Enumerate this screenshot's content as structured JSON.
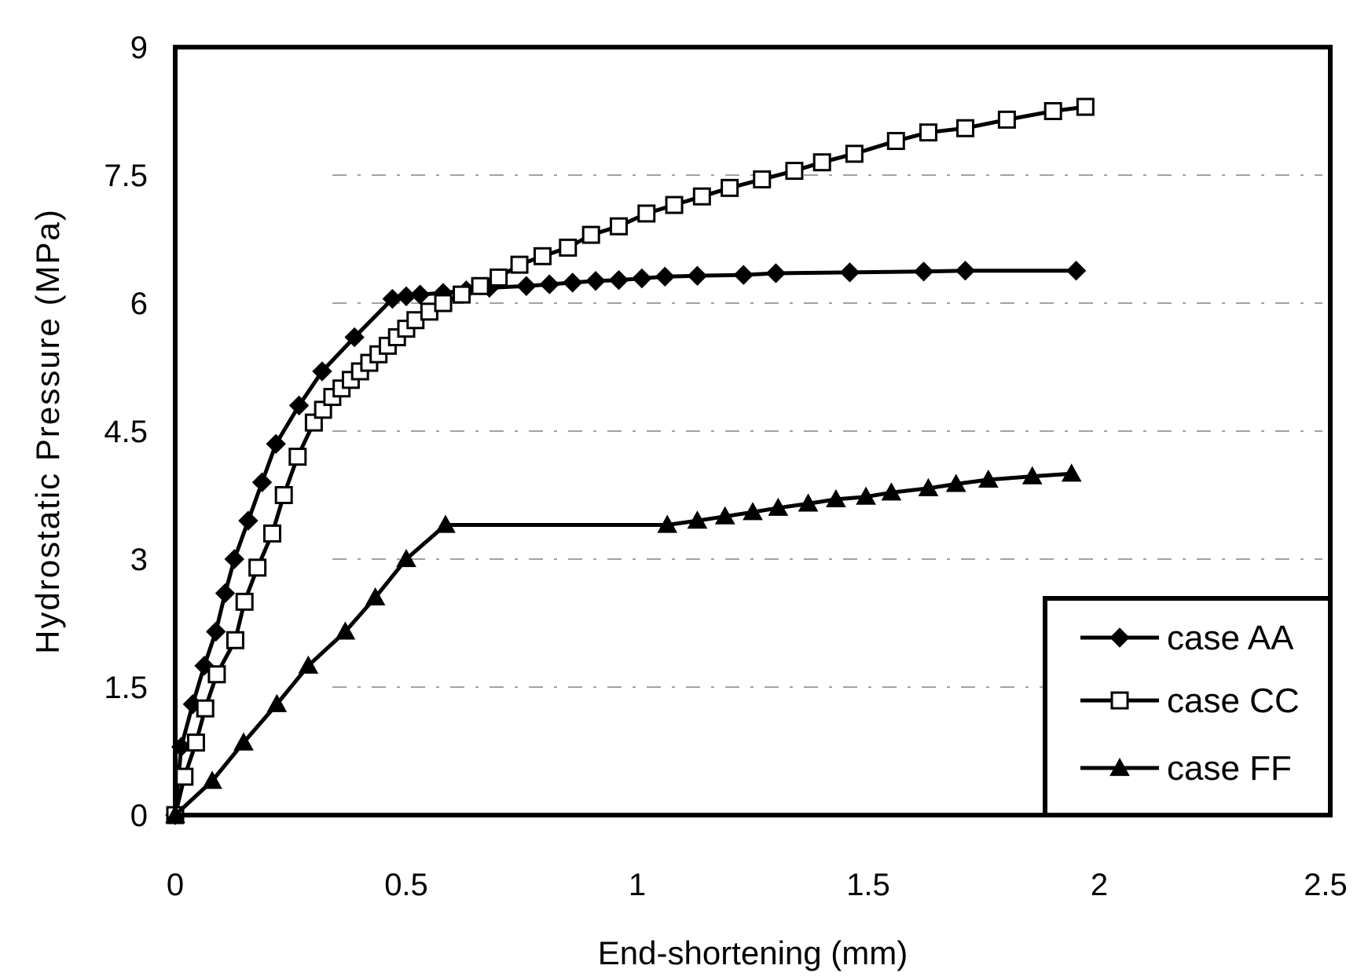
{
  "chart_data": {
    "type": "line",
    "title": "",
    "xlabel": "End-shortening (mm)",
    "ylabel": "Hydrostatic Pressure (MPa)",
    "xlim": [
      0,
      2.5
    ],
    "ylim": [
      0,
      9
    ],
    "xticks": [
      0,
      0.5,
      1,
      1.5,
      2,
      2.5
    ],
    "xtick_labels": [
      "0",
      "0.5",
      "1",
      "1.5",
      "2",
      "2.5"
    ],
    "yticks": [
      0,
      1.5,
      3,
      4.5,
      6,
      7.5,
      9
    ],
    "ytick_labels": [
      "0",
      "1.5",
      "3",
      "4.5",
      "6",
      "7.5",
      "9"
    ],
    "grid": "horizontal dashed",
    "legend_position": "bottom-right",
    "colors": {
      "line": "#000000",
      "background": "#ffffff"
    },
    "series": [
      {
        "name": "case AA",
        "marker": "diamond-filled",
        "x": [
          0,
          0.013,
          0.038,
          0.063,
          0.088,
          0.108,
          0.128,
          0.158,
          0.188,
          0.218,
          0.268,
          0.318,
          0.388,
          0.47,
          0.5,
          0.53,
          0.58,
          0.63,
          0.68,
          0.76,
          0.81,
          0.86,
          0.91,
          0.96,
          1.01,
          1.06,
          1.13,
          1.23,
          1.3,
          1.46,
          1.62,
          1.71,
          1.95
        ],
        "y": [
          0,
          0.8,
          1.3,
          1.75,
          2.15,
          2.6,
          3.0,
          3.45,
          3.9,
          4.35,
          4.8,
          5.2,
          5.6,
          6.05,
          6.08,
          6.1,
          6.12,
          6.15,
          6.18,
          6.2,
          6.22,
          6.24,
          6.26,
          6.27,
          6.29,
          6.31,
          6.32,
          6.33,
          6.35,
          6.36,
          6.37,
          6.38,
          6.38
        ]
      },
      {
        "name": "case CC",
        "marker": "square-open",
        "x": [
          0,
          0.02,
          0.045,
          0.065,
          0.09,
          0.13,
          0.15,
          0.178,
          0.21,
          0.235,
          0.265,
          0.3,
          0.32,
          0.34,
          0.36,
          0.38,
          0.4,
          0.42,
          0.44,
          0.46,
          0.48,
          0.5,
          0.52,
          0.55,
          0.58,
          0.62,
          0.66,
          0.7,
          0.745,
          0.795,
          0.85,
          0.9,
          0.96,
          1.02,
          1.08,
          1.14,
          1.2,
          1.27,
          1.34,
          1.4,
          1.47,
          1.56,
          1.63,
          1.71,
          1.8,
          1.9,
          1.97
        ],
        "y": [
          0,
          0.45,
          0.85,
          1.25,
          1.65,
          2.05,
          2.5,
          2.9,
          3.3,
          3.75,
          4.2,
          4.6,
          4.75,
          4.9,
          5.0,
          5.1,
          5.2,
          5.3,
          5.4,
          5.5,
          5.6,
          5.7,
          5.8,
          5.9,
          6.0,
          6.1,
          6.2,
          6.3,
          6.45,
          6.55,
          6.65,
          6.8,
          6.9,
          7.05,
          7.15,
          7.25,
          7.35,
          7.45,
          7.55,
          7.65,
          7.75,
          7.9,
          8.0,
          8.05,
          8.15,
          8.25,
          8.3
        ]
      },
      {
        "name": "case FF",
        "marker": "triangle-filled",
        "x": [
          0,
          0.08,
          0.148,
          0.22,
          0.288,
          0.368,
          0.433,
          0.5,
          0.585,
          1.065,
          1.13,
          1.19,
          1.25,
          1.305,
          1.37,
          1.43,
          1.495,
          1.55,
          1.63,
          1.69,
          1.76,
          1.855,
          1.94
        ],
        "y": [
          0,
          0.4,
          0.85,
          1.3,
          1.75,
          2.15,
          2.55,
          3.0,
          3.4,
          3.4,
          3.45,
          3.5,
          3.55,
          3.6,
          3.65,
          3.7,
          3.73,
          3.78,
          3.83,
          3.88,
          3.93,
          3.97,
          4.0
        ]
      }
    ]
  }
}
